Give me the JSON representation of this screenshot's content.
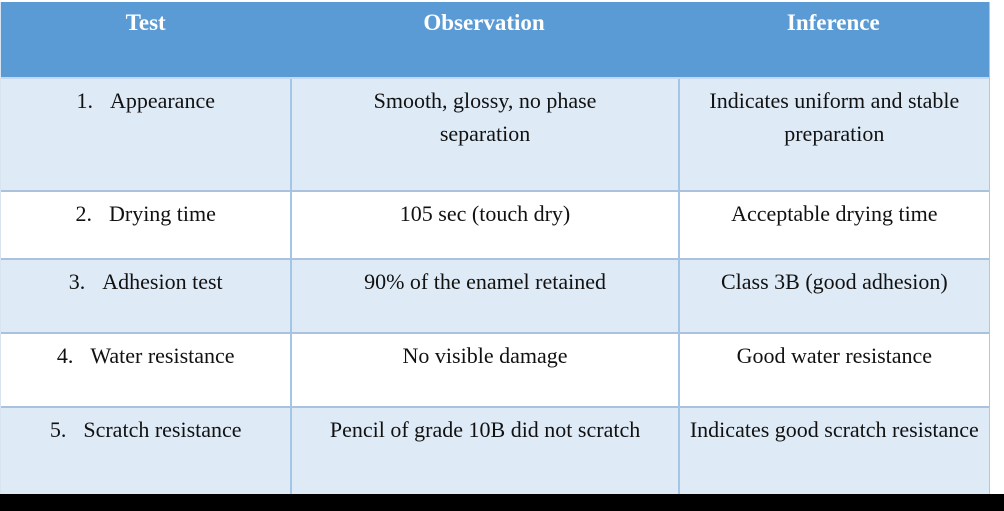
{
  "table": {
    "headers": {
      "test": "Test",
      "observation": "Observation",
      "inference": "Inference"
    },
    "rows": [
      {
        "num": "1.",
        "test": "Appearance",
        "observation": "Smooth, glossy, no phase separation",
        "inference": "Indicates uniform and stable preparation"
      },
      {
        "num": "2.",
        "test": "Drying time",
        "observation": "105 sec (touch dry)",
        "inference": "Acceptable drying time"
      },
      {
        "num": "3.",
        "test": "Adhesion test",
        "observation": "90% of the enamel retained",
        "inference": "Class 3B (good adhesion)"
      },
      {
        "num": "4.",
        "test": "Water resistance",
        "observation": "No visible damage",
        "inference": "Good water resistance"
      },
      {
        "num": "5.",
        "test": "Scratch resistance",
        "observation": "Pencil of grade 10B did not scratch",
        "inference": "Indicates good scratch resistance"
      }
    ]
  },
  "colors": {
    "header_bg": "#5B9BD5",
    "header_text": "#FFFFFF",
    "row_alt_bg": "#DEEAF6",
    "row_bg": "#FFFFFF",
    "grid_line": "#A3C6E6",
    "bottom_bar": "#000000",
    "body_text": "#111111"
  }
}
